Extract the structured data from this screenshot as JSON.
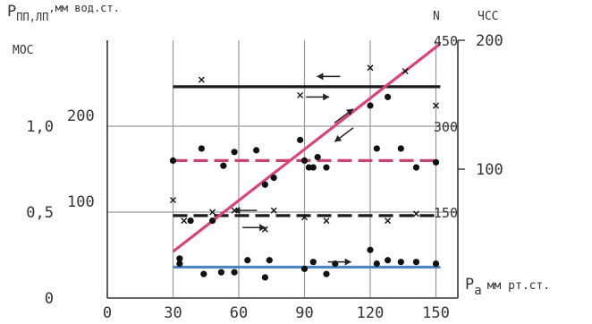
{
  "chart_data": {
    "type": "scatter",
    "xlabel": "P",
    "xlabel_sub": "a",
    "xlabel_unit": "мм рт.ст.",
    "ylabel": "P",
    "ylabel_sub": "ПП,ЛП",
    "ylabel_unit": ",мм вод.ст.",
    "ylabel_2": "МОС",
    "right_label_n": "N",
    "right_label_hr": "ЧСС",
    "x_ticks": [
      "0",
      "30",
      "60",
      "90",
      "120",
      "150"
    ],
    "y_ticks_left": [
      "0",
      "0,5",
      "1,0"
    ],
    "y_ticks_inner": [
      "100",
      "200"
    ],
    "y_ticks_n": [
      "150",
      "300",
      "450"
    ],
    "y_ticks_hr": [
      "100",
      "200"
    ],
    "xlim": [
      0,
      160
    ],
    "ylim": [
      0,
      1.5
    ],
    "grid": true,
    "series": [
      {
        "marker": "dot",
        "color": "#111111",
        "x": [
          30,
          33,
          38,
          43,
          48,
          53,
          58,
          68,
          72,
          76,
          88,
          90,
          92,
          94,
          96,
          100,
          120,
          123,
          128,
          134,
          141,
          150
        ],
        "y": [
          0.8,
          0.23,
          0.45,
          0.87,
          0.45,
          0.77,
          0.85,
          0.86,
          0.66,
          0.7,
          0.92,
          0.8,
          0.76,
          0.76,
          0.82,
          0.76,
          1.12,
          0.87,
          1.17,
          0.87,
          0.76,
          0.79
        ]
      },
      {
        "marker": "dot",
        "color": "#111111",
        "x": [
          33,
          44,
          52,
          58,
          64,
          72,
          74,
          90,
          94,
          100,
          104,
          120,
          123,
          128,
          134,
          141,
          150
        ],
        "y": [
          0.2,
          0.14,
          0.15,
          0.15,
          0.22,
          0.12,
          0.22,
          0.17,
          0.21,
          0.14,
          0.2,
          0.28,
          0.2,
          0.22,
          0.21,
          0.21,
          0.2
        ]
      },
      {
        "marker": "cross",
        "color": "#111111",
        "x": [
          30,
          35,
          43,
          48,
          58,
          72,
          76,
          88,
          90,
          100,
          120,
          128,
          136,
          141,
          150
        ],
        "y": [
          0.57,
          0.45,
          1.27,
          0.5,
          0.51,
          0.4,
          0.51,
          1.18,
          0.47,
          0.45,
          1.34,
          0.45,
          1.32,
          0.49,
          1.12
        ]
      },
      {
        "marker": "line",
        "color": "#1a1a1a",
        "style": "solid",
        "x": [
          30,
          152
        ],
        "y": [
          1.23,
          1.23
        ]
      },
      {
        "marker": "line",
        "color": "#c8446f",
        "style": "dashed",
        "x": [
          30,
          152
        ],
        "y": [
          0.8,
          0.8
        ]
      },
      {
        "marker": "line",
        "color": "#1a1a1a",
        "style": "dashed",
        "x": [
          30,
          152
        ],
        "y": [
          0.48,
          0.48
        ]
      },
      {
        "marker": "line",
        "color": "#4a86c6",
        "style": "solid",
        "x": [
          30,
          152
        ],
        "y": [
          0.18,
          0.18
        ]
      },
      {
        "marker": "line",
        "color": "#d9437a",
        "style": "solid",
        "x": [
          30,
          152
        ],
        "y": [
          0.27,
          1.48
        ]
      }
    ],
    "arrows": [
      {
        "x": 101,
        "y": 1.29,
        "dir": "left"
      },
      {
        "x": 96,
        "y": 1.17,
        "dir": "right"
      },
      {
        "x": 108,
        "y": 1.06,
        "dir": "up-right"
      },
      {
        "x": 108,
        "y": 0.95,
        "dir": "down-left"
      },
      {
        "x": 63,
        "y": 0.51,
        "dir": "left"
      },
      {
        "x": 67,
        "y": 0.41,
        "dir": "right"
      },
      {
        "x": 106,
        "y": 0.21,
        "dir": "right"
      }
    ]
  }
}
